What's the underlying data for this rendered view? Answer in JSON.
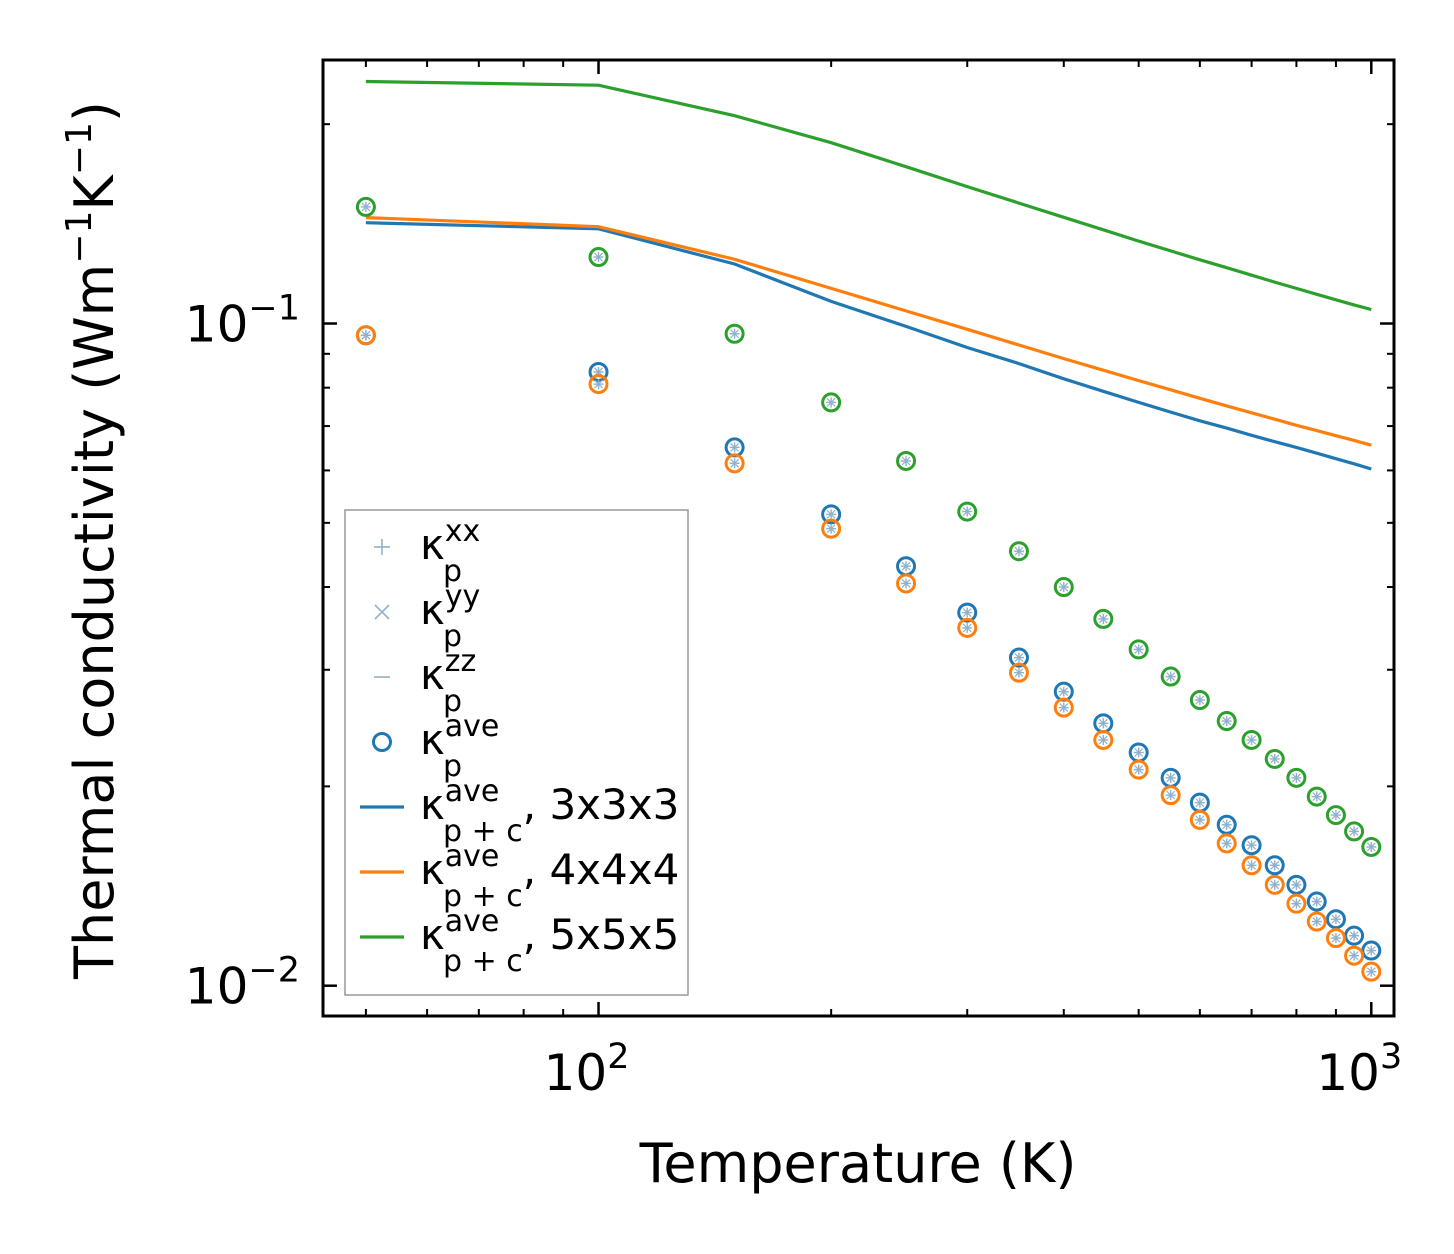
{
  "chart_data": {
    "type": "scatter",
    "xlabel": "Temperature (K)",
    "ylabel": "Thermal conductivity",
    "ylabel_units": {
      "base1": "(Wm",
      "exp1": "−1",
      "base2": "K",
      "exp2": "−1",
      "close": ")"
    },
    "xscale": "log",
    "yscale": "log",
    "xlim": [
      44,
      1070
    ],
    "ylim": [
      0.009,
      0.25
    ],
    "xticks": [
      {
        "value": 100,
        "base": "10",
        "exp": "2"
      },
      {
        "value": 1000,
        "base": "10",
        "exp": "3"
      }
    ],
    "yticks": [
      {
        "value": 0.01,
        "base": "10",
        "exp": "−2"
      },
      {
        "value": 0.1,
        "base": "10",
        "exp": "−1"
      }
    ],
    "x": [
      50,
      100,
      150,
      200,
      250,
      300,
      350,
      400,
      450,
      500,
      550,
      600,
      650,
      700,
      750,
      800,
      850,
      900,
      950,
      1000
    ],
    "colors": {
      "c3": "#1f77b4",
      "c4": "#ff7f0e",
      "c5": "#2ca02c",
      "tensor": "#8fb1cc",
      "axis": "#000000"
    },
    "series": [
      {
        "name": "kp 3x3x3",
        "kind": "marker",
        "color": "#1f77b4",
        "values": [
          0.096,
          0.0845,
          0.065,
          0.0515,
          0.043,
          0.0366,
          0.0313,
          0.0278,
          0.0249,
          0.0225,
          0.0206,
          0.0189,
          0.0175,
          0.0163,
          0.0152,
          0.0142,
          0.0134,
          0.0126,
          0.0119,
          0.0113
        ]
      },
      {
        "name": "kp 4x4x4",
        "kind": "marker",
        "color": "#ff7f0e",
        "values": [
          0.096,
          0.081,
          0.0615,
          0.049,
          0.0405,
          0.0347,
          0.0297,
          0.0263,
          0.0235,
          0.0212,
          0.0194,
          0.0178,
          0.0164,
          0.0152,
          0.0142,
          0.0133,
          0.0125,
          0.0118,
          0.0111,
          0.0105
        ]
      },
      {
        "name": "kp 5x5x5",
        "kind": "marker",
        "color": "#2ca02c",
        "values": [
          0.15,
          0.126,
          0.0965,
          0.076,
          0.062,
          0.052,
          0.0453,
          0.04,
          0.0358,
          0.0322,
          0.0293,
          0.027,
          0.0251,
          0.0235,
          0.022,
          0.0206,
          0.0193,
          0.0181,
          0.0171,
          0.0162
        ]
      },
      {
        "name": "kpc 3x3x3",
        "kind": "line",
        "color": "#1f77b4",
        "values": [
          0.142,
          0.139,
          0.123,
          0.108,
          0.099,
          0.092,
          0.087,
          0.0825,
          0.079,
          0.076,
          0.0735,
          0.0713,
          0.0695,
          0.0678,
          0.0663,
          0.065,
          0.0637,
          0.0625,
          0.0614,
          0.0603
        ]
      },
      {
        "name": "kpc 4x4x4",
        "kind": "line",
        "color": "#ff7f0e",
        "values": [
          0.1445,
          0.14,
          0.125,
          0.113,
          0.1045,
          0.098,
          0.0928,
          0.0885,
          0.085,
          0.082,
          0.0794,
          0.0771,
          0.0751,
          0.0733,
          0.0717,
          0.0702,
          0.0689,
          0.0677,
          0.0666,
          0.0655
        ]
      },
      {
        "name": "kpc 5x5x5",
        "kind": "line",
        "color": "#2ca02c",
        "values": [
          0.232,
          0.229,
          0.206,
          0.1875,
          0.1725,
          0.161,
          0.152,
          0.1447,
          0.1385,
          0.1332,
          0.1287,
          0.1248,
          0.1214,
          0.1183,
          0.1155,
          0.113,
          0.1107,
          0.1086,
          0.1067,
          0.105
        ]
      }
    ],
    "legend": [
      {
        "kind": "plus",
        "color": "#8fb1cc",
        "sym": "κ",
        "sub": "p",
        "sup": "xx",
        "suffix": ""
      },
      {
        "kind": "cross",
        "color": "#8fb1cc",
        "sym": "κ",
        "sub": "p",
        "sup": "yy",
        "suffix": ""
      },
      {
        "kind": "hline",
        "color": "#8fb1cc",
        "sym": "κ",
        "sub": "p",
        "sup": "zz",
        "suffix": ""
      },
      {
        "kind": "circle",
        "color": "#1f77b4",
        "sym": "κ",
        "sub": "p",
        "sup": "ave",
        "suffix": ""
      },
      {
        "kind": "line",
        "color": "#1f77b4",
        "sym": "κ",
        "sub": "p + c",
        "sup": "ave",
        "suffix": ", 3x3x3"
      },
      {
        "kind": "line",
        "color": "#ff7f0e",
        "sym": "κ",
        "sub": "p + c",
        "sup": "ave",
        "suffix": ", 4x4x4"
      },
      {
        "kind": "line",
        "color": "#2ca02c",
        "sym": "κ",
        "sub": "p + c",
        "sup": "ave",
        "suffix": ", 5x5x5"
      }
    ],
    "legend_position": "lower-left"
  }
}
